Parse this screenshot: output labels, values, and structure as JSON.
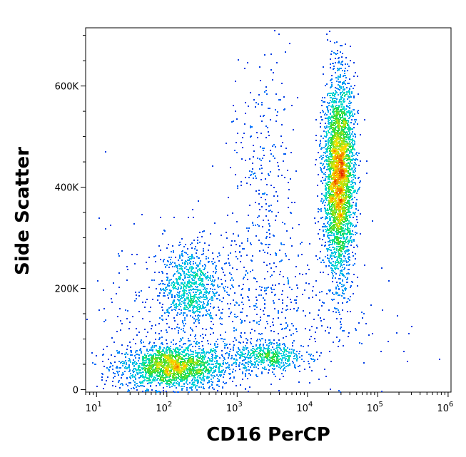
{
  "chart_data": {
    "type": "scatter",
    "title": "",
    "xlabel": "CD16 PerCP",
    "ylabel": "Side Scatter",
    "x_scale": "log",
    "xlim": [
      7,
      1100000
    ],
    "ylim": [
      -5000,
      715000
    ],
    "x_ticks": [
      {
        "base": "10",
        "exp": "1",
        "value": 10
      },
      {
        "base": "10",
        "exp": "2",
        "value": 100
      },
      {
        "base": "10",
        "exp": "3",
        "value": 1000
      },
      {
        "base": "10",
        "exp": "4",
        "value": 10000
      },
      {
        "base": "10",
        "exp": "5",
        "value": 100000
      },
      {
        "base": "10",
        "exp": "6",
        "value": 1000000
      }
    ],
    "y_ticks": [
      {
        "label": "0",
        "value": 0
      },
      {
        "label": "200K",
        "value": 200000
      },
      {
        "label": "400K",
        "value": 400000
      },
      {
        "label": "600K",
        "value": 600000
      }
    ],
    "grid": false,
    "legend": "none",
    "colormap": "density: blue → cyan → green → yellow → red",
    "series": [
      {
        "cluster": "lymphocytes-cd16-negative",
        "x_center": 120,
        "y_center": 45000,
        "count": 1900,
        "x_spread_log10": 0.38,
        "y_spread": 22000
      },
      {
        "cluster": "monocytes",
        "x_center": 200,
        "y_center": 205000,
        "count": 700,
        "x_spread_log10": 0.2,
        "y_spread": 38000
      },
      {
        "cluster": "nk-cells-cd16-dim",
        "x_center": 2800,
        "y_center": 65000,
        "count": 450,
        "x_spread_log10": 0.25,
        "y_spread": 14000
      },
      {
        "cluster": "neutrophils-cd16-bright",
        "x_center": 28000,
        "y_center": 420000,
        "count": 3400,
        "x_spread_log10": 0.11,
        "y_spread": 95000
      },
      {
        "cluster": "eosinophil-tail",
        "x_center": 2400,
        "y_center": 420000,
        "count": 260,
        "x_spread_log10": 0.25,
        "y_spread": 120000
      },
      {
        "cluster": "background",
        "x_center": 800,
        "y_center": 150000,
        "count": 900,
        "x_spread_log10": 0.9,
        "y_spread": 90000
      }
    ]
  }
}
